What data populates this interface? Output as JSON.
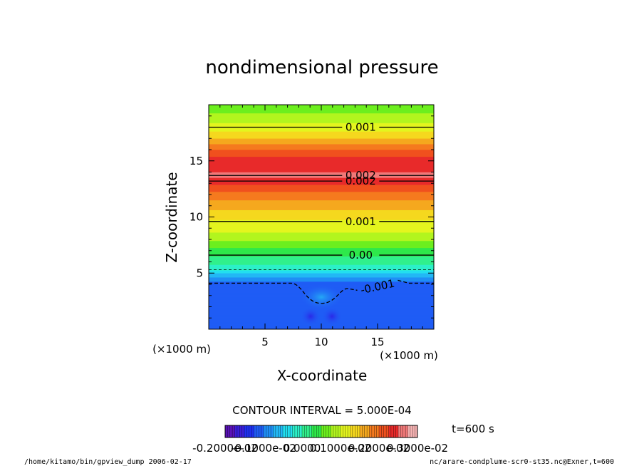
{
  "chart_data": {
    "type": "heatmap",
    "title": "nondimensional pressure",
    "xlabel": "X-coordinate",
    "ylabel": "Z-coordinate",
    "x_unit": "(×1000 m)",
    "z_unit": "(×1000 m)",
    "xlim": [
      0,
      20
    ],
    "ylim": [
      0,
      20
    ],
    "x_ticks": [
      5,
      10,
      15
    ],
    "y_ticks": [
      5,
      10,
      15
    ],
    "contour_interval_label": "CONTOUR INTERVAL = 5.000E-04",
    "time_label": "t=600 s",
    "colorbar": {
      "min": -0.002,
      "max": 0.003,
      "tick_labels": [
        "-0.2000e-02",
        "-0.1000e-02",
        "0.0000",
        "0.1000e-02",
        "0.2000e-02",
        "0.3000e-02"
      ],
      "colors": [
        "#5a12b8",
        "#3a1ed8",
        "#1e30f0",
        "#1f5cf5",
        "#1f8ef5",
        "#22b8f5",
        "#22dff0",
        "#2cf0c8",
        "#30f08c",
        "#2ee84a",
        "#6cef1e",
        "#b2f51e",
        "#e4f51e",
        "#f5d81e",
        "#f5a81e",
        "#f57a1e",
        "#f0501e",
        "#e82a2a",
        "#f07878",
        "#f5b2b2"
      ]
    },
    "field_profile_z": [
      0,
      1,
      2,
      3,
      4,
      5,
      5.5,
      6,
      7,
      8,
      9,
      10,
      11,
      12,
      13,
      13.5,
      14,
      15,
      16,
      17,
      18,
      19,
      20
    ],
    "field_profile_value": [
      -0.0012,
      -0.0012,
      -0.0012,
      -0.0012,
      -0.0012,
      -0.0005,
      -0.0001,
      0.0001,
      0.0004,
      0.0008,
      0.0011,
      0.0013,
      0.0016,
      0.0019,
      0.0023,
      0.0025,
      0.0025,
      0.0024,
      0.002,
      0.0015,
      0.0011,
      0.0008,
      0.0006
    ],
    "contours": [
      {
        "label": "0.001",
        "z": 18
      },
      {
        "label": "0.002",
        "z": 13.7
      },
      {
        "label": "0.002",
        "z": 13.2
      },
      {
        "label": "0.001",
        "z": 9.6
      },
      {
        "label": "0.00",
        "z": 6.6
      },
      {
        "label": "-0.001",
        "z": 4.1,
        "dashed": true,
        "dip": true
      }
    ],
    "extra_dashed_z": 5.3
  },
  "footer": {
    "left": "/home/kitamo/bin/gpview_dump  2006-02-17",
    "right": "nc/arare-condplume-scr0-st35.nc@Exner,t=600"
  }
}
